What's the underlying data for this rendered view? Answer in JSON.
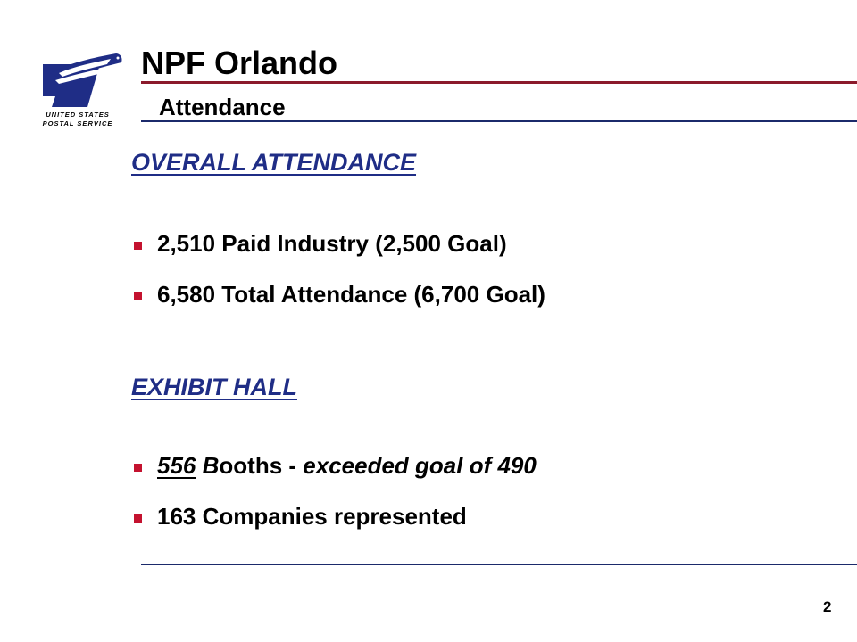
{
  "logo": {
    "name": "usps-eagle-logo",
    "line1": "UNITED STATES",
    "line2": "POSTAL SERVICE",
    "color": "#1f2d86"
  },
  "header": {
    "title": "NPF Orlando",
    "subtitle": "Attendance"
  },
  "sections": [
    {
      "heading": "OVERALL ATTENDANCE",
      "bullets": [
        "2,510 Paid Industry (2,500 Goal)",
        "6,580 Total Attendance (6,700 Goal)"
      ]
    },
    {
      "heading": "EXHIBIT HALL",
      "bullets": [
        {
          "num": "556",
          "b": "B",
          "ooths": "ooths - ",
          "rest": "exceeded goal of 490"
        },
        "163 Companies represented"
      ]
    }
  ],
  "footer": {
    "page_number": "2"
  },
  "colors": {
    "heading": "#1f2d86",
    "bullet": "#c4122f",
    "title_rule": "#8b1a2b",
    "rule": "#1b2a6b"
  }
}
